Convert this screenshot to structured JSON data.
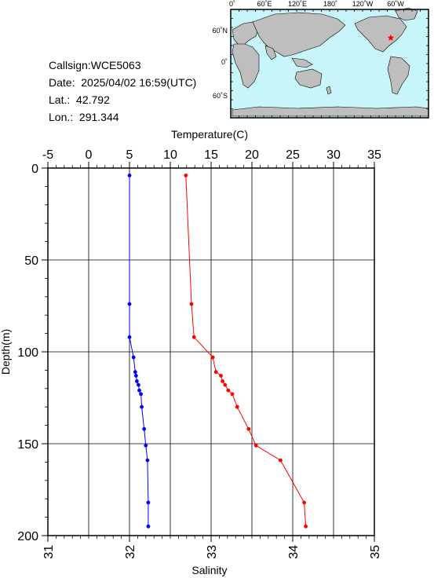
{
  "station": {
    "callsign_label": "Callsign:",
    "callsign": "WCE5063",
    "date_label": "Date: ",
    "date": "2025/04/02 16:59(UTC)",
    "lat_label": "Lat.: ",
    "lat": "42.792",
    "lon_label": "Lon.: ",
    "lon": "291.344"
  },
  "map": {
    "top_labels": [
      "0˚",
      "60˚E",
      "120˚E",
      "180˚",
      "120˚W",
      "60˚W"
    ],
    "lat_labels": [
      "60˚N",
      "0˚",
      "60˚S"
    ],
    "ocean_color": "#c8f5fa",
    "land_color": "#bebebe",
    "marker_color": "#ff0000",
    "marker": {
      "lon": 291.344,
      "lat": 42.792
    }
  },
  "chart_data": {
    "type": "line",
    "ylabel": "Depth(m)",
    "ylim": [
      0,
      200
    ],
    "y_ticks": [
      0,
      50,
      100,
      150,
      200
    ],
    "y_reversed": true,
    "top_axis": {
      "label": "Temperature(C)",
      "range": [
        -5,
        35
      ],
      "ticks": [
        -5,
        0,
        5,
        10,
        15,
        20,
        25,
        30,
        35
      ]
    },
    "bottom_axis": {
      "label": "Salinity",
      "range": [
        31,
        35
      ],
      "ticks": [
        31,
        32,
        33,
        34,
        35
      ]
    },
    "grid": true,
    "series": [
      {
        "axis": "top",
        "color": "#ff0000",
        "points": [
          {
            "x": 11.9,
            "y": 4
          },
          {
            "x": 12.6,
            "y": 74
          },
          {
            "x": 12.9,
            "y": 92
          },
          {
            "x": 15.2,
            "y": 103
          },
          {
            "x": 15.6,
            "y": 111
          },
          {
            "x": 16.2,
            "y": 113
          },
          {
            "x": 16.4,
            "y": 116
          },
          {
            "x": 16.7,
            "y": 118
          },
          {
            "x": 17.1,
            "y": 121
          },
          {
            "x": 17.6,
            "y": 123
          },
          {
            "x": 18.2,
            "y": 130
          },
          {
            "x": 19.6,
            "y": 142
          },
          {
            "x": 20.5,
            "y": 151
          },
          {
            "x": 23.5,
            "y": 159
          },
          {
            "x": 26.4,
            "y": 182
          },
          {
            "x": 26.6,
            "y": 195
          }
        ]
      },
      {
        "axis": "bottom",
        "color": "#0000ff",
        "points": [
          {
            "x": 32.0,
            "y": 4
          },
          {
            "x": 32.0,
            "y": 74
          },
          {
            "x": 32.0,
            "y": 92
          },
          {
            "x": 32.05,
            "y": 103
          },
          {
            "x": 32.07,
            "y": 111
          },
          {
            "x": 32.08,
            "y": 113
          },
          {
            "x": 32.09,
            "y": 116
          },
          {
            "x": 32.11,
            "y": 118
          },
          {
            "x": 32.12,
            "y": 121
          },
          {
            "x": 32.14,
            "y": 123
          },
          {
            "x": 32.15,
            "y": 130
          },
          {
            "x": 32.18,
            "y": 142
          },
          {
            "x": 32.2,
            "y": 151
          },
          {
            "x": 32.22,
            "y": 159
          },
          {
            "x": 32.23,
            "y": 182
          },
          {
            "x": 32.23,
            "y": 195
          }
        ]
      }
    ]
  }
}
